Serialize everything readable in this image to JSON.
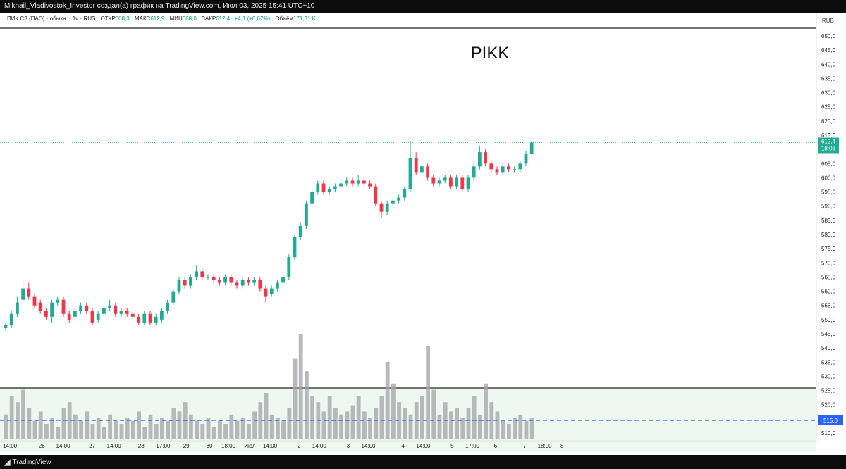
{
  "header": {
    "caption": "Mikhail_Vladivostok_Investor создал(а) график на TradingView.com, Июл 03, 2025 15:41 UTC+10"
  },
  "legend": {
    "symbol": "ПИК СЗ (ПАО) · обыкн. · 1ч · RUS",
    "open_label": "ОТКР",
    "open_value": "608,3",
    "high_label": "МАКС",
    "high_value": "612,9",
    "low_label": "МИН",
    "low_value": "608,0",
    "close_label": "ЗАКР",
    "close_value": "612,4",
    "change": "+4,1 (+0,67%)",
    "volume_label": "Объём",
    "volume_value": "171,31 K"
  },
  "annotation": "PIKK",
  "currency": "RUB",
  "last_price": {
    "price": "612,4",
    "countdown": "18:06"
  },
  "level_label": "515,0",
  "footer": {
    "brand": "TradingView"
  },
  "colors": {
    "up": "#22ab94",
    "down": "#f23645",
    "volume": "#a8a8ad",
    "level_line": "#2962ff",
    "zone_fill": "#edf8f0"
  },
  "chart_data": {
    "type": "candlestick",
    "ylim": [
      507,
      653
    ],
    "y_ticks": [
      "650,0",
      "645,0",
      "640,0",
      "635,0",
      "630,0",
      "625,0",
      "620,0",
      "615,0",
      "605,0",
      "600,0",
      "595,0",
      "590,0",
      "585,0",
      "580,0",
      "575,0",
      "570,0",
      "565,0",
      "560,0",
      "555,0",
      "550,0",
      "545,0",
      "540,0",
      "535,0",
      "530,0",
      "525,0",
      "520,0",
      "510,0"
    ],
    "y_tick_values": [
      650,
      645,
      640,
      635,
      630,
      625,
      620,
      615,
      605,
      600,
      595,
      590,
      585,
      580,
      575,
      570,
      565,
      560,
      555,
      550,
      545,
      540,
      535,
      530,
      525,
      520,
      510
    ],
    "x_ticks": [
      "14:00",
      "26",
      "14:00",
      "27",
      "14:00",
      "28",
      "17:00",
      "29",
      "30",
      "18:00",
      "Июл",
      "14:00",
      "2",
      "14:00",
      "3",
      "14:00",
      "4",
      "14:00",
      "5",
      "17:00",
      "6",
      "7",
      "18:00",
      "8"
    ],
    "x_tick_index": [
      0.5,
      6,
      9.7,
      14.7,
      18.5,
      23.2,
      27,
      31,
      35,
      38.3,
      42,
      45.5,
      50.5,
      54,
      59,
      62.5,
      68.5,
      72,
      77,
      80.5,
      84.5,
      89.5,
      93,
      96
    ],
    "candles": [
      {
        "o": 547,
        "c": 548
      },
      {
        "o": 548,
        "c": 552
      },
      {
        "o": 552,
        "c": 556
      },
      {
        "o": 557,
        "c": 561
      },
      {
        "o": 561,
        "c": 558
      },
      {
        "o": 558,
        "c": 555
      },
      {
        "o": 556,
        "c": 553
      },
      {
        "o": 553,
        "c": 551
      },
      {
        "o": 551,
        "c": 556
      },
      {
        "o": 556,
        "c": 557
      },
      {
        "o": 557,
        "c": 552
      },
      {
        "o": 552,
        "c": 550
      },
      {
        "o": 551,
        "c": 553
      },
      {
        "o": 553,
        "c": 555
      },
      {
        "o": 555,
        "c": 553
      },
      {
        "o": 553,
        "c": 549
      },
      {
        "o": 550,
        "c": 552
      },
      {
        "o": 552,
        "c": 554
      },
      {
        "o": 554,
        "c": 555
      },
      {
        "o": 555,
        "c": 552
      },
      {
        "o": 552,
        "c": 553
      },
      {
        "o": 553,
        "c": 552
      },
      {
        "o": 552,
        "c": 551
      },
      {
        "o": 551,
        "c": 549
      },
      {
        "o": 549,
        "c": 552
      },
      {
        "o": 552,
        "c": 549
      },
      {
        "o": 549,
        "c": 551
      },
      {
        "o": 550,
        "c": 553
      },
      {
        "o": 553,
        "c": 556
      },
      {
        "o": 556,
        "c": 560
      },
      {
        "o": 560,
        "c": 564
      },
      {
        "o": 564,
        "c": 562
      },
      {
        "o": 562,
        "c": 565
      },
      {
        "o": 565,
        "c": 567
      },
      {
        "o": 567,
        "c": 565
      },
      {
        "o": 565,
        "c": 565
      },
      {
        "o": 565,
        "c": 564
      },
      {
        "o": 564,
        "c": 563
      },
      {
        "o": 563,
        "c": 565
      },
      {
        "o": 565,
        "c": 563
      },
      {
        "o": 563,
        "c": 562
      },
      {
        "o": 562,
        "c": 564
      },
      {
        "o": 564,
        "c": 563
      },
      {
        "o": 563,
        "c": 564
      },
      {
        "o": 564,
        "c": 561
      },
      {
        "o": 561,
        "c": 558
      },
      {
        "o": 559,
        "c": 561
      },
      {
        "o": 561,
        "c": 563
      },
      {
        "o": 563,
        "c": 565
      },
      {
        "o": 565,
        "c": 572
      },
      {
        "o": 572,
        "c": 579
      },
      {
        "o": 579,
        "c": 583
      },
      {
        "o": 583,
        "c": 591
      },
      {
        "o": 591,
        "c": 595
      },
      {
        "o": 595,
        "c": 598
      },
      {
        "o": 598,
        "c": 595
      },
      {
        "o": 595,
        "c": 596
      },
      {
        "o": 596,
        "c": 597
      },
      {
        "o": 597,
        "c": 598
      },
      {
        "o": 598,
        "c": 599
      },
      {
        "o": 599,
        "c": 598
      },
      {
        "o": 598,
        "c": 599
      },
      {
        "o": 599,
        "c": 598
      },
      {
        "o": 598,
        "c": 597
      },
      {
        "o": 597,
        "c": 591
      },
      {
        "o": 591,
        "c": 588
      },
      {
        "o": 588,
        "c": 591
      },
      {
        "o": 591,
        "c": 592
      },
      {
        "o": 592,
        "c": 593
      },
      {
        "o": 593,
        "c": 596
      },
      {
        "o": 596,
        "c": 607
      },
      {
        "o": 607,
        "c": 602
      },
      {
        "o": 602,
        "c": 604
      },
      {
        "o": 604,
        "c": 600
      },
      {
        "o": 600,
        "c": 598
      },
      {
        "o": 598,
        "c": 599
      },
      {
        "o": 599,
        "c": 600
      },
      {
        "o": 600,
        "c": 597
      },
      {
        "o": 597,
        "c": 600
      },
      {
        "o": 600,
        "c": 596
      },
      {
        "o": 596,
        "c": 600
      },
      {
        "o": 600,
        "c": 604
      },
      {
        "o": 604,
        "c": 609
      },
      {
        "o": 609,
        "c": 605
      },
      {
        "o": 605,
        "c": 603
      },
      {
        "o": 603,
        "c": 602
      },
      {
        "o": 602,
        "c": 604
      },
      {
        "o": 604,
        "c": 603
      },
      {
        "o": 603,
        "c": 603
      },
      {
        "o": 603,
        "c": 605
      },
      {
        "o": 605,
        "c": 608.3
      },
      {
        "o": 608.3,
        "c": 612.4
      }
    ],
    "high_offsets": [
      1,
      1,
      2,
      3,
      2,
      1,
      1,
      1,
      1,
      1,
      1,
      1,
      1,
      1,
      1,
      1,
      1,
      1,
      2,
      1,
      1,
      1,
      1,
      1,
      1,
      1,
      1,
      1,
      1,
      1,
      1,
      1,
      1,
      2,
      1,
      1,
      1,
      1,
      1,
      1,
      1,
      1,
      1,
      1,
      1,
      1,
      1,
      1,
      1,
      1,
      1,
      1,
      1,
      1,
      1,
      1,
      1,
      1,
      1,
      1,
      1,
      2,
      1,
      1,
      1,
      1,
      1,
      1,
      1,
      1,
      6,
      2,
      1,
      1,
      1,
      1,
      1,
      1,
      1,
      1,
      1,
      2,
      2,
      1,
      1,
      1,
      1,
      1,
      1,
      1,
      1,
      0.5
    ],
    "low_offsets": [
      1,
      1,
      1,
      1,
      1,
      1,
      1,
      1,
      2,
      1,
      1,
      1,
      1,
      1,
      1,
      1,
      1,
      1,
      1,
      1,
      1,
      1,
      1,
      1,
      1,
      1,
      1,
      1,
      1,
      1,
      1,
      1,
      1,
      1,
      1,
      1,
      1,
      1,
      1,
      1,
      1,
      1,
      1,
      1,
      1,
      2,
      1,
      1,
      1,
      1,
      1,
      1,
      1,
      1,
      1,
      1,
      1,
      1,
      1,
      1,
      1,
      1,
      1,
      1,
      1,
      2,
      1,
      1,
      1,
      1,
      1,
      1,
      1,
      1,
      1,
      1,
      1,
      1,
      1,
      1,
      1,
      1,
      1,
      1,
      1,
      1,
      1,
      1,
      1,
      1,
      1,
      0.3
    ],
    "volumes": [
      8,
      14,
      12,
      16,
      10,
      6,
      9,
      5,
      7,
      4,
      10,
      12,
      8,
      6,
      9,
      5,
      7,
      4,
      8,
      6,
      5,
      7,
      6,
      9,
      4,
      8,
      5,
      7,
      6,
      10,
      9,
      12,
      8,
      6,
      5,
      7,
      4,
      6,
      5,
      8,
      6,
      7,
      5,
      9,
      12,
      15,
      8,
      7,
      6,
      10,
      26,
      34,
      22,
      14,
      12,
      9,
      14,
      10,
      8,
      9,
      11,
      14,
      9,
      7,
      10,
      14,
      25,
      18,
      12,
      10,
      8,
      12,
      14,
      30,
      16,
      8,
      12,
      9,
      10,
      7,
      10,
      14,
      8,
      18,
      12,
      9,
      6,
      5,
      7,
      8,
      6,
      7
    ]
  }
}
